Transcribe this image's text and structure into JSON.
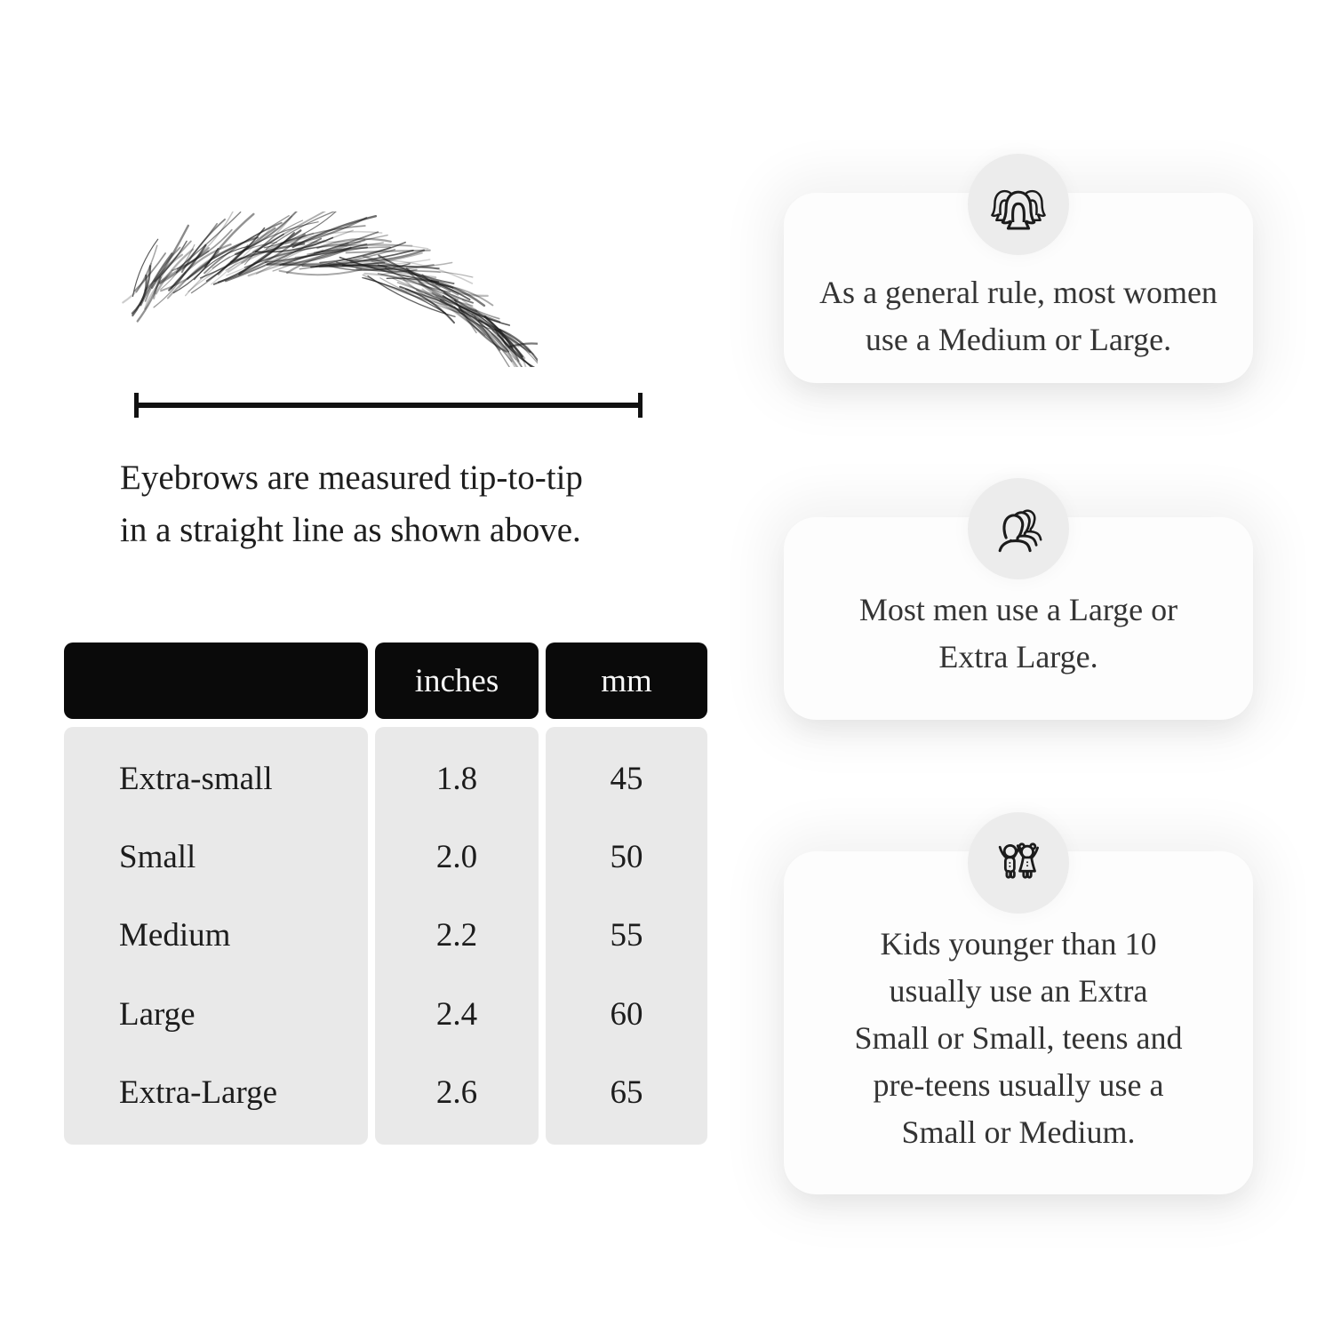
{
  "measure_diagram": {
    "caption_line1": "Eyebrows are measured tip-to-tip",
    "caption_line2": "in a straight line as shown above."
  },
  "size_table": {
    "header": {
      "name_col": "",
      "inches_col": "inches",
      "mm_col": "mm"
    },
    "rows": [
      {
        "label": "Extra-small",
        "inches": "1.8",
        "mm": "45"
      },
      {
        "label": "Small",
        "inches": "2.0",
        "mm": "50"
      },
      {
        "label": "Medium",
        "inches": "2.2",
        "mm": "55"
      },
      {
        "label": "Large",
        "inches": "2.4",
        "mm": "60"
      },
      {
        "label": "Extra-Large",
        "inches": "2.6",
        "mm": "65"
      }
    ]
  },
  "cards": [
    {
      "icon": "women-group-icon",
      "lines": [
        "As a general rule, most women",
        "use a Medium or Large."
      ]
    },
    {
      "icon": "men-group-icon",
      "lines": [
        "Most men use a Large or",
        "Extra Large."
      ]
    },
    {
      "icon": "kids-icon",
      "lines": [
        "Kids younger than 10",
        "usually use an Extra",
        "Small or Small, teens and",
        "pre-teens usually use a",
        "Small or Medium."
      ]
    }
  ],
  "colors": {
    "header_bg": "#0a0a0a",
    "header_text": "#f7f7f7",
    "table_body_bg": "#e9e9e9",
    "card_bg": "#fdfdfd",
    "badge_bg": "#ececec",
    "ink": "#1e1e1e",
    "card_ink": "#343434",
    "line": "#111111"
  }
}
